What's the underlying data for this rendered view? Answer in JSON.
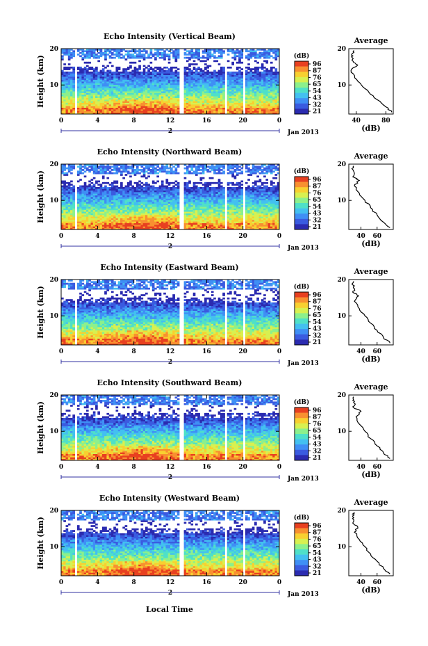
{
  "figure": {
    "xlabel": "Local Time",
    "date_label": "Jan 2013",
    "day_label": "2",
    "avg_title": "Average",
    "avg_xlabel": "(dB)",
    "cbar_unit": "(dB)",
    "ylabel": "Height (km)"
  },
  "colors": {
    "scale": [
      "#2b2bb0",
      "#3a5be0",
      "#3f8ff5",
      "#43c0f0",
      "#4fe0c8",
      "#8cf08c",
      "#d8f050",
      "#f8d030",
      "#f89030",
      "#e84020"
    ],
    "axis": "#000000",
    "date_bar": "#3030a0"
  },
  "chart_data": [
    {
      "type": "heatmap",
      "title": "Echo Intensity (Vertical Beam)",
      "xlabel": "",
      "ylabel": "Height (km)",
      "xlim": [
        0,
        24
      ],
      "ylim": [
        2,
        20
      ],
      "xticks": [
        "0",
        "4",
        "8",
        "12",
        "16",
        "20",
        "0"
      ],
      "yticks": [
        "20",
        "10"
      ],
      "colorbar": {
        "label": "(dB)",
        "ticks": [
          "96",
          "87",
          "76",
          "65",
          "54",
          "43",
          "32",
          "21"
        ]
      },
      "gaps_hours": [
        [
          0.9,
          1.1
        ],
        [
          1.4,
          1.7
        ],
        [
          13.1,
          13.4
        ],
        [
          18.0,
          18.3
        ],
        [
          18.45,
          18.6
        ],
        [
          20.0,
          20.15
        ]
      ],
      "average_profile": {
        "title": "Average",
        "xlabel": "(dB)",
        "xticks": [
          "40",
          "80"
        ],
        "yticks": [
          "20",
          "10"
        ],
        "xlim": [
          30,
          90
        ],
        "height_km": [
          2.5,
          4,
          6,
          8,
          10,
          12,
          14,
          15.5,
          16.5,
          17.5,
          18.5,
          19.5
        ],
        "db": [
          88,
          80,
          68,
          57,
          47,
          38,
          33,
          42,
          36,
          35,
          34,
          37
        ]
      }
    },
    {
      "type": "heatmap",
      "title": "Echo Intensity (Northward Beam)",
      "xlabel": "",
      "ylabel": "Height (km)",
      "xlim": [
        0,
        24
      ],
      "ylim": [
        2,
        20
      ],
      "xticks": [
        "0",
        "4",
        "8",
        "12",
        "16",
        "20",
        "0"
      ],
      "yticks": [
        "20",
        "10"
      ],
      "colorbar": {
        "label": "(dB)",
        "ticks": [
          "96",
          "87",
          "76",
          "65",
          "54",
          "43",
          "32",
          "21"
        ]
      },
      "gaps_hours": [
        [
          0.9,
          1.1
        ],
        [
          1.4,
          1.7
        ],
        [
          5.4,
          5.6
        ],
        [
          13.1,
          13.4
        ],
        [
          18.0,
          18.3
        ],
        [
          20.0,
          20.15
        ]
      ],
      "average_profile": {
        "title": "Average",
        "xlabel": "(dB)",
        "xticks": [
          "40",
          "60"
        ],
        "yticks": [
          "20",
          "10"
        ],
        "xlim": [
          25,
          80
        ],
        "height_km": [
          2.5,
          4,
          6,
          8,
          10,
          12,
          14,
          15.5,
          16.5,
          17.5,
          18.5,
          19.5
        ],
        "db": [
          76,
          68,
          60,
          52,
          45,
          38,
          32,
          38,
          30,
          32,
          30,
          31
        ]
      }
    },
    {
      "type": "heatmap",
      "title": "Echo Intensity (Eastward Beam)",
      "xlabel": "",
      "ylabel": "Height (km)",
      "xlim": [
        0,
        24
      ],
      "ylim": [
        2,
        20
      ],
      "xticks": [
        "0",
        "4",
        "8",
        "12",
        "16",
        "20",
        "0"
      ],
      "yticks": [
        "20",
        "10"
      ],
      "colorbar": {
        "label": "(dB)",
        "ticks": [
          "96",
          "87",
          "76",
          "65",
          "54",
          "43",
          "32",
          "21"
        ]
      },
      "gaps_hours": [
        [
          0.9,
          1.1
        ],
        [
          1.4,
          1.7
        ],
        [
          5.4,
          5.6
        ],
        [
          13.1,
          13.4
        ],
        [
          18.0,
          18.3
        ],
        [
          20.0,
          20.15
        ]
      ],
      "average_profile": {
        "title": "Average",
        "xlabel": "(dB)",
        "xticks": [
          "40",
          "60"
        ],
        "yticks": [
          "20",
          "10"
        ],
        "xlim": [
          25,
          80
        ],
        "height_km": [
          2.5,
          4,
          6,
          8,
          10,
          12,
          14,
          15.5,
          16.5,
          17.5,
          18.5,
          19.5
        ],
        "db": [
          76,
          68,
          60,
          52,
          45,
          38,
          32,
          37,
          30,
          32,
          30,
          31
        ]
      }
    },
    {
      "type": "heatmap",
      "title": "Echo Intensity (Southward Beam)",
      "xlabel": "",
      "ylabel": "Height (km)",
      "xlim": [
        0,
        24
      ],
      "ylim": [
        2,
        20
      ],
      "xticks": [
        "0",
        "4",
        "8",
        "12",
        "16",
        "20",
        "0"
      ],
      "yticks": [
        "20",
        "10"
      ],
      "colorbar": {
        "label": "(dB)",
        "ticks": [
          "96",
          "87",
          "76",
          "65",
          "54",
          "43",
          "32",
          "21"
        ]
      },
      "gaps_hours": [
        [
          0.9,
          1.1
        ],
        [
          1.4,
          1.7
        ],
        [
          5.4,
          5.6
        ],
        [
          13.1,
          13.4
        ],
        [
          18.0,
          18.3
        ],
        [
          20.0,
          20.15
        ]
      ],
      "average_profile": {
        "title": "Average",
        "xlabel": "(dB)",
        "xticks": [
          "40",
          "60"
        ],
        "yticks": [
          "20",
          "10"
        ],
        "xlim": [
          25,
          80
        ],
        "height_km": [
          2.5,
          4,
          6,
          8,
          10,
          12,
          14,
          15.5,
          16.5,
          17.5,
          18.5,
          19.5
        ],
        "db": [
          76,
          68,
          60,
          52,
          45,
          38,
          34,
          40,
          31,
          33,
          30,
          31
        ]
      }
    },
    {
      "type": "heatmap",
      "title": "Echo Intensity (Westward Beam)",
      "xlabel": "Local Time",
      "ylabel": "Height (km)",
      "xlim": [
        0,
        24
      ],
      "ylim": [
        2,
        20
      ],
      "xticks": [
        "0",
        "4",
        "8",
        "12",
        "16",
        "20",
        "0"
      ],
      "yticks": [
        "20",
        "10"
      ],
      "colorbar": {
        "label": "(dB)",
        "ticks": [
          "96",
          "87",
          "76",
          "65",
          "54",
          "43",
          "32",
          "21"
        ]
      },
      "gaps_hours": [
        [
          0.9,
          1.1
        ],
        [
          1.4,
          1.7
        ],
        [
          5.4,
          5.6
        ],
        [
          13.1,
          13.4
        ],
        [
          18.0,
          18.3
        ],
        [
          20.0,
          20.15
        ]
      ],
      "average_profile": {
        "title": "Average",
        "xlabel": "(dB)",
        "xticks": [
          "40",
          "60"
        ],
        "yticks": [
          "20",
          "10"
        ],
        "xlim": [
          25,
          80
        ],
        "height_km": [
          2.5,
          4,
          6,
          8,
          10,
          12,
          14,
          15.5,
          16.5,
          17.5,
          18.5,
          19.5
        ],
        "db": [
          76,
          68,
          60,
          52,
          45,
          38,
          32,
          36,
          30,
          31,
          30,
          31
        ]
      }
    }
  ]
}
